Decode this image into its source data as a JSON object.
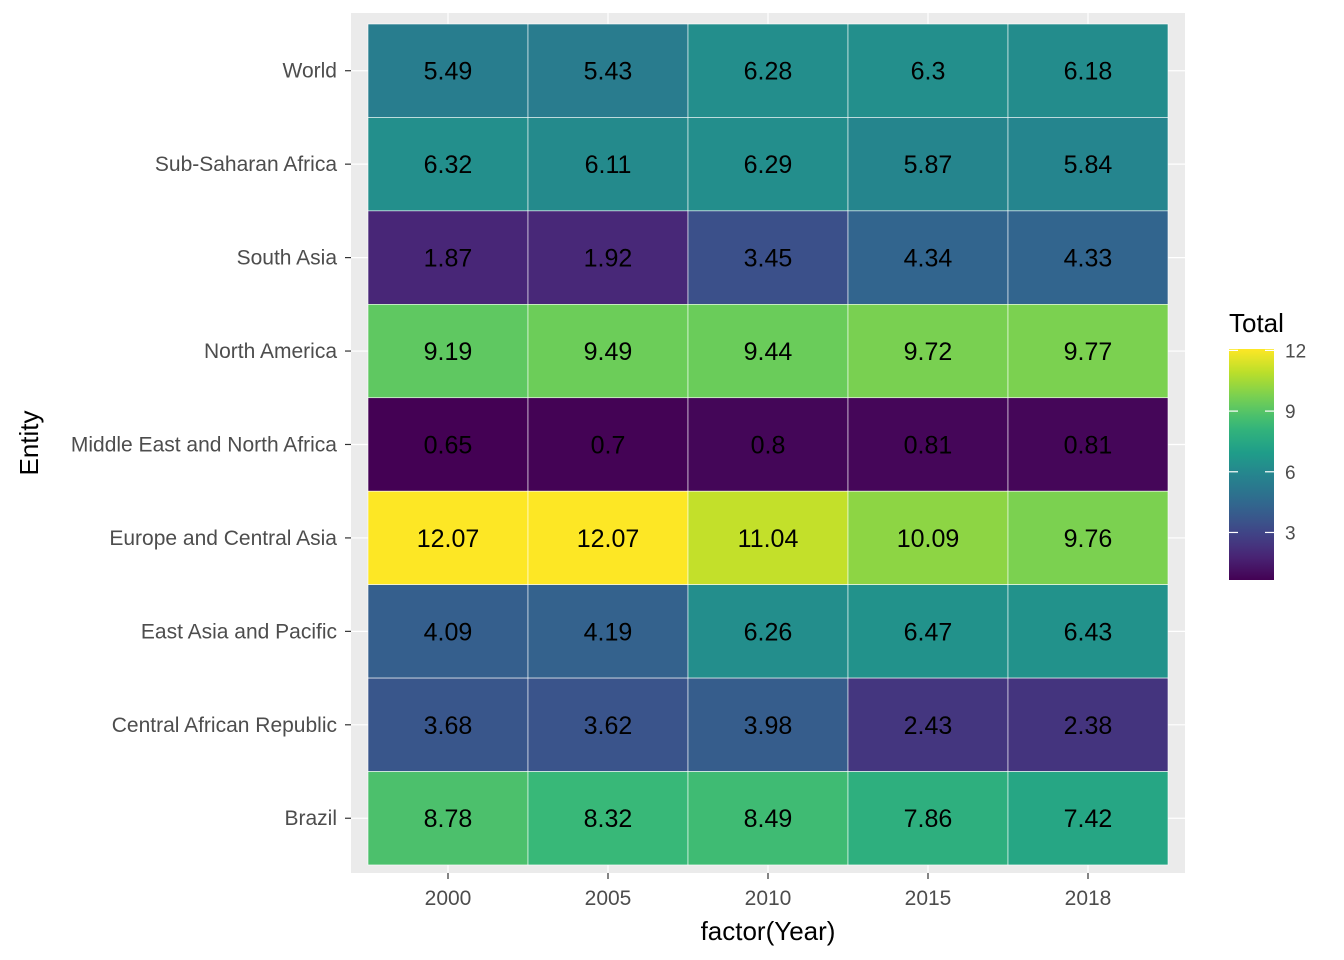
{
  "chart_data": {
    "type": "heatmap",
    "xlabel": "factor(Year)",
    "ylabel": "Entity",
    "x_categories": [
      "2000",
      "2005",
      "2010",
      "2015",
      "2018"
    ],
    "y_categories": [
      "World",
      "Sub-Saharan Africa",
      "South Asia",
      "North America",
      "Middle East and North Africa",
      "Europe and Central Asia",
      "East Asia and Pacific",
      "Central African Republic",
      "Brazil"
    ],
    "values": [
      [
        5.49,
        5.43,
        6.28,
        6.3,
        6.18
      ],
      [
        6.32,
        6.11,
        6.29,
        5.87,
        5.84
      ],
      [
        1.87,
        1.92,
        3.45,
        4.34,
        4.33
      ],
      [
        9.19,
        9.49,
        9.44,
        9.72,
        9.77
      ],
      [
        0.65,
        0.7,
        0.8,
        0.81,
        0.81
      ],
      [
        12.07,
        12.07,
        11.04,
        10.09,
        9.76
      ],
      [
        4.09,
        4.19,
        6.26,
        6.47,
        6.43
      ],
      [
        3.68,
        3.62,
        3.98,
        2.43,
        2.38
      ],
      [
        8.78,
        8.32,
        8.49,
        7.86,
        7.42
      ]
    ],
    "value_labels": [
      [
        "5.49",
        "5.43",
        "6.28",
        "6.3",
        "6.18"
      ],
      [
        "6.32",
        "6.11",
        "6.29",
        "5.87",
        "5.84"
      ],
      [
        "1.87",
        "1.92",
        "3.45",
        "4.34",
        "4.33"
      ],
      [
        "9.19",
        "9.49",
        "9.44",
        "9.72",
        "9.77"
      ],
      [
        "0.65",
        "0.7",
        "0.8",
        "0.81",
        "0.81"
      ],
      [
        "12.07",
        "12.07",
        "11.04",
        "10.09",
        "9.76"
      ],
      [
        "4.09",
        "4.19",
        "6.26",
        "6.47",
        "6.43"
      ],
      [
        "3.68",
        "3.62",
        "3.98",
        "2.43",
        "2.38"
      ],
      [
        "8.78",
        "8.32",
        "8.49",
        "7.86",
        "7.42"
      ]
    ],
    "legend": {
      "title": "Total",
      "ticks": [
        3,
        6,
        9,
        12
      ],
      "tick_labels": [
        "3",
        "6",
        "9",
        "12"
      ],
      "min": 0.65,
      "max": 12.07,
      "placement": "right"
    },
    "colormap": "viridis",
    "colors": {
      "panel_background": "#ebebeb",
      "grid": "#ffffff",
      "viridis_stops": [
        "#440154",
        "#482878",
        "#3e4a89",
        "#31688e",
        "#26828e",
        "#1f9e89",
        "#35b779",
        "#6ece58",
        "#b5de2b",
        "#fde725"
      ]
    }
  }
}
